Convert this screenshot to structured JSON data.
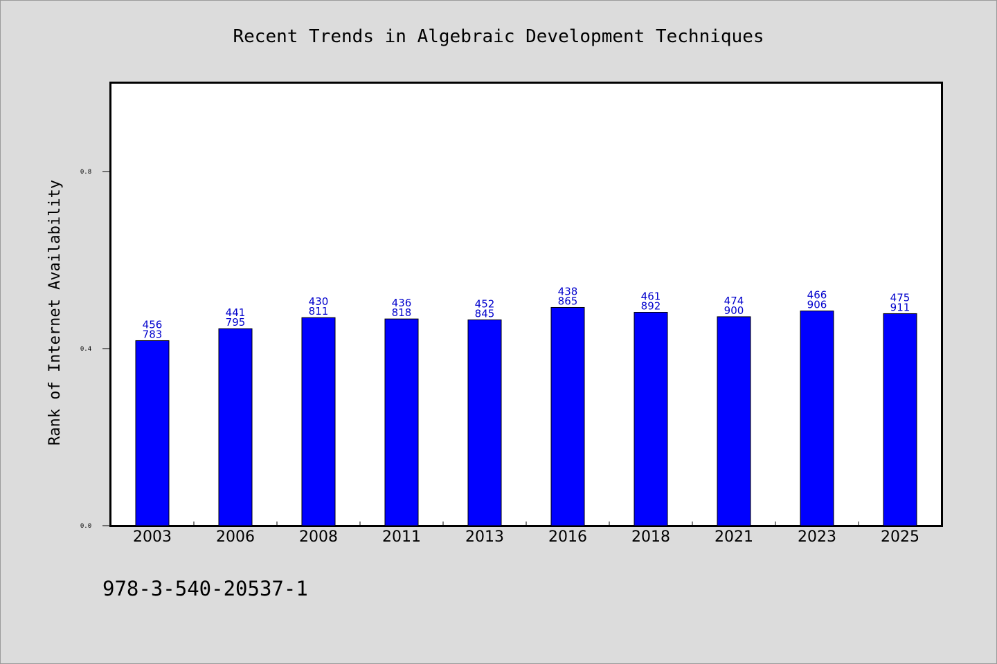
{
  "chart_data": {
    "type": "bar",
    "title": "Recent Trends in Algebraic Development Techniques",
    "xlabel": "",
    "ylabel": "Rank of Internet Availability",
    "ylim": [
      0,
      1.0
    ],
    "yticks": [
      0.0,
      0.4,
      0.8
    ],
    "ytick_labels": [
      "0.0",
      "0.4",
      "0.8"
    ],
    "grid": false,
    "bar_color": "#0000ff",
    "label_color": "#0000cc",
    "categories": [
      "2003",
      "2006",
      "2008",
      "2011",
      "2013",
      "2016",
      "2018",
      "2021",
      "2023",
      "2025"
    ],
    "values": [
      0.418,
      0.445,
      0.47,
      0.467,
      0.465,
      0.493,
      0.482,
      0.472,
      0.485,
      0.479
    ],
    "data_labels": [
      [
        "456",
        "783"
      ],
      [
        "441",
        "795"
      ],
      [
        "430",
        "811"
      ],
      [
        "436",
        "818"
      ],
      [
        "452",
        "845"
      ],
      [
        "438",
        "865"
      ],
      [
        "461",
        "892"
      ],
      [
        "474",
        "900"
      ],
      [
        "466",
        "906"
      ],
      [
        "475",
        "911"
      ]
    ]
  },
  "footer": {
    "isbn": "978-3-540-20537-1"
  }
}
